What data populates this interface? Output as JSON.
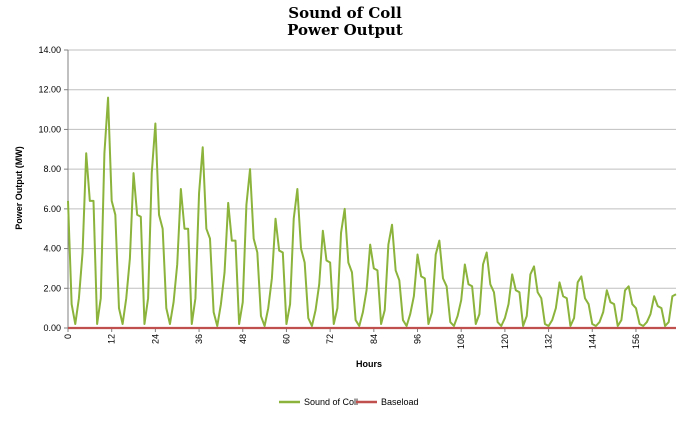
{
  "chart_data": {
    "type": "line",
    "title": "Sound of Coll",
    "subtitle": "Power Output",
    "xlabel": "Hours",
    "ylabel": "Power Output (MW)",
    "xlim": [
      0,
      167
    ],
    "ylim": [
      0,
      14
    ],
    "y_ticks": [
      "0.00",
      "2.00",
      "4.00",
      "6.00",
      "8.00",
      "10.00",
      "12.00",
      "14.00"
    ],
    "x_ticks": [
      "0",
      "12",
      "24",
      "36",
      "48",
      "60",
      "72",
      "84",
      "96",
      "108",
      "120",
      "132",
      "144",
      "156"
    ],
    "grid": true,
    "legend_position": "bottom",
    "colors": {
      "Sound of Coll": "#8cb43c",
      "Baseload": "#c0504d"
    },
    "series": [
      {
        "name": "Sound of Coll",
        "x": [
          0,
          1,
          2,
          3,
          4,
          5,
          6,
          7,
          8,
          9,
          10,
          11,
          12,
          13,
          14,
          15,
          16,
          17,
          18,
          19,
          20,
          21,
          22,
          23,
          24,
          25,
          26,
          27,
          28,
          29,
          30,
          31,
          32,
          33,
          34,
          35,
          36,
          37,
          38,
          39,
          40,
          41,
          42,
          43,
          44,
          45,
          46,
          47,
          48,
          49,
          50,
          51,
          52,
          53,
          54,
          55,
          56,
          57,
          58,
          59,
          60,
          61,
          62,
          63,
          64,
          65,
          66,
          67,
          68,
          69,
          70,
          71,
          72,
          73,
          74,
          75,
          76,
          77,
          78,
          79,
          80,
          81,
          82,
          83,
          84,
          85,
          86,
          87,
          88,
          89,
          90,
          91,
          92,
          93,
          94,
          95,
          96,
          97,
          98,
          99,
          100,
          101,
          102,
          103,
          104,
          105,
          106,
          107,
          108,
          109,
          110,
          111,
          112,
          113,
          114,
          115,
          116,
          117,
          118,
          119,
          120,
          121,
          122,
          123,
          124,
          125,
          126,
          127,
          128,
          129,
          130,
          131,
          132,
          133,
          134,
          135,
          136,
          137,
          138,
          139,
          140,
          141,
          142,
          143,
          144,
          145,
          146,
          147,
          148,
          149,
          150,
          151,
          152,
          153,
          154,
          155,
          156,
          157,
          158,
          159,
          160,
          161,
          162,
          163,
          164,
          165,
          166,
          167
        ],
        "y": [
          6.4,
          1.2,
          0.2,
          1.5,
          3.8,
          8.8,
          6.4,
          6.4,
          0.2,
          1.5,
          8.8,
          11.6,
          6.4,
          5.7,
          1.0,
          0.2,
          1.5,
          3.5,
          7.8,
          5.7,
          5.6,
          0.2,
          1.5,
          7.8,
          10.3,
          5.7,
          5.0,
          1.0,
          0.2,
          1.3,
          3.2,
          7.0,
          5.0,
          5.0,
          0.2,
          1.5,
          6.8,
          9.1,
          5.0,
          4.5,
          0.8,
          0.1,
          1.2,
          2.8,
          6.3,
          4.4,
          4.4,
          0.2,
          1.3,
          6.2,
          8.0,
          4.5,
          3.8,
          0.6,
          0.1,
          1.0,
          2.5,
          5.5,
          3.9,
          3.8,
          0.2,
          1.2,
          5.5,
          7.0,
          4.0,
          3.3,
          0.5,
          0.1,
          0.9,
          2.2,
          4.9,
          3.4,
          3.3,
          0.2,
          1.0,
          4.8,
          6.0,
          3.3,
          2.8,
          0.4,
          0.1,
          0.8,
          1.9,
          4.2,
          3.0,
          2.9,
          0.2,
          0.9,
          4.2,
          5.2,
          2.9,
          2.4,
          0.4,
          0.1,
          0.7,
          1.6,
          3.7,
          2.6,
          2.5,
          0.2,
          0.8,
          3.7,
          4.4,
          2.5,
          2.1,
          0.3,
          0.1,
          0.6,
          1.4,
          3.2,
          2.2,
          2.1,
          0.2,
          0.7,
          3.2,
          3.8,
          2.2,
          1.8,
          0.3,
          0.1,
          0.5,
          1.2,
          2.7,
          1.9,
          1.8,
          0.1,
          0.6,
          2.7,
          3.1,
          1.8,
          1.5,
          0.2,
          0.1,
          0.4,
          1.0,
          2.3,
          1.6,
          1.5,
          0.1,
          0.5,
          2.3,
          2.6,
          1.5,
          1.2,
          0.2,
          0.1,
          0.3,
          0.8,
          1.9,
          1.3,
          1.2,
          0.1,
          0.4,
          1.9,
          2.1,
          1.2,
          1.0,
          0.2,
          0.1,
          0.3,
          0.7,
          1.6,
          1.1,
          1.0,
          0.1,
          0.3,
          1.6,
          1.7
        ]
      },
      {
        "name": "Baseload",
        "x": [
          0,
          1,
          2,
          3,
          4,
          5,
          6,
          7,
          8,
          9,
          10,
          11,
          12,
          13,
          14,
          15,
          16,
          17,
          18,
          19,
          20,
          21,
          22,
          23,
          24,
          25,
          26,
          27,
          28,
          29,
          30,
          31,
          32,
          33,
          34,
          35,
          36,
          37,
          38,
          39,
          40,
          41,
          42,
          43,
          44,
          45,
          46,
          47,
          48,
          49,
          50,
          51,
          52,
          53,
          54,
          55,
          56,
          57,
          58,
          59,
          60,
          61,
          62,
          63,
          64,
          65,
          66,
          67,
          68,
          69,
          70,
          71,
          72,
          73,
          74,
          75,
          76,
          77,
          78,
          79,
          80,
          81,
          82,
          83,
          84,
          85,
          86,
          87,
          88,
          89,
          90,
          91,
          92,
          93,
          94,
          95,
          96,
          97,
          98,
          99,
          100,
          101,
          102,
          103,
          104,
          105,
          106,
          107,
          108,
          109,
          110,
          111,
          112,
          113,
          114,
          115,
          116,
          117,
          118,
          119,
          120,
          121,
          122,
          123,
          124,
          125,
          126,
          127,
          128,
          129,
          130,
          131,
          132,
          133,
          134,
          135,
          136,
          137,
          138,
          139,
          140,
          141,
          142,
          143,
          144,
          145,
          146,
          147,
          148,
          149,
          150,
          151,
          152,
          153,
          154,
          155,
          156,
          157,
          158,
          159,
          160,
          161,
          162,
          163,
          164,
          165,
          166,
          167
        ],
        "y": [
          0,
          0,
          0,
          0,
          0,
          0,
          0,
          0,
          0,
          0,
          0,
          0,
          0,
          0,
          0,
          0,
          0,
          0,
          0,
          0,
          0,
          0,
          0,
          0,
          0,
          0,
          0,
          0,
          0,
          0,
          0,
          0,
          0,
          0,
          0,
          0,
          0,
          0,
          0,
          0,
          0,
          0,
          0,
          0,
          0,
          0,
          0,
          0,
          0,
          0,
          0,
          0,
          0,
          0,
          0,
          0,
          0,
          0,
          0,
          0,
          0,
          0,
          0,
          0,
          0,
          0,
          0,
          0,
          0,
          0,
          0,
          0,
          0,
          0,
          0,
          0,
          0,
          0,
          0,
          0,
          0,
          0,
          0,
          0,
          0,
          0,
          0,
          0,
          0,
          0,
          0,
          0,
          0,
          0,
          0,
          0,
          0,
          0,
          0,
          0,
          0,
          0,
          0,
          0,
          0,
          0,
          0,
          0,
          0,
          0,
          0,
          0,
          0,
          0,
          0,
          0,
          0,
          0,
          0,
          0,
          0,
          0,
          0,
          0,
          0,
          0,
          0,
          0,
          0,
          0,
          0,
          0,
          0,
          0,
          0,
          0,
          0,
          0,
          0,
          0,
          0,
          0,
          0,
          0,
          0,
          0,
          0,
          0,
          0,
          0,
          0,
          0,
          0,
          0,
          0,
          0,
          0,
          0,
          0,
          0,
          0,
          0,
          0,
          0,
          0,
          0,
          0,
          0
        ]
      }
    ]
  }
}
